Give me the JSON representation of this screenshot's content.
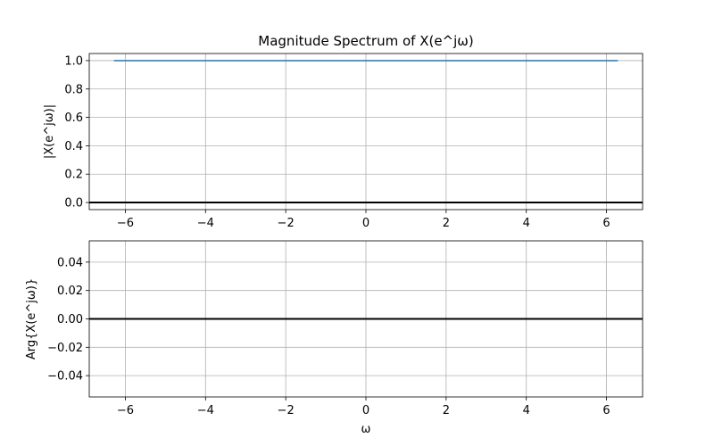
{
  "chart_data": [
    {
      "type": "line",
      "title": "Magnitude Spectrum of X(e^jω)",
      "xlabel": "",
      "ylabel": "|X(e^jω)|",
      "xlim": [
        -6.9,
        6.9
      ],
      "ylim": [
        -0.05,
        1.05
      ],
      "xticks": [
        -6,
        -4,
        -2,
        0,
        2,
        4,
        6
      ],
      "xtick_labels": [
        "−6",
        "−4",
        "−2",
        "0",
        "2",
        "4",
        "6"
      ],
      "yticks": [
        0.0,
        0.2,
        0.4,
        0.6,
        0.8,
        1.0
      ],
      "ytick_labels": [
        "0.0",
        "0.2",
        "0.4",
        "0.6",
        "0.8",
        "1.0"
      ],
      "grid": true,
      "reference_line_y": 0,
      "series": [
        {
          "x": [
            -6.2832,
            6.2832
          ],
          "values": [
            1.0,
            1.0
          ],
          "color": "#1f77b4"
        }
      ]
    },
    {
      "type": "line",
      "title": "",
      "xlabel": "ω",
      "ylabel": "Arg{X(e^jω)}",
      "xlim": [
        -6.9,
        6.9
      ],
      "ylim": [
        -0.055,
        0.055
      ],
      "xticks": [
        -6,
        -4,
        -2,
        0,
        2,
        4,
        6
      ],
      "xtick_labels": [
        "−6",
        "−4",
        "−2",
        "0",
        "2",
        "4",
        "6"
      ],
      "yticks": [
        -0.04,
        -0.02,
        0.0,
        0.02,
        0.04
      ],
      "ytick_labels": [
        "−0.04",
        "−0.02",
        "0.00",
        "0.02",
        "0.04"
      ],
      "grid": true,
      "reference_line_y": 0,
      "series": [
        {
          "x": [
            -6.2832,
            6.2832
          ],
          "values": [
            0.0,
            0.0
          ],
          "color": "#1f77b4"
        }
      ]
    }
  ]
}
